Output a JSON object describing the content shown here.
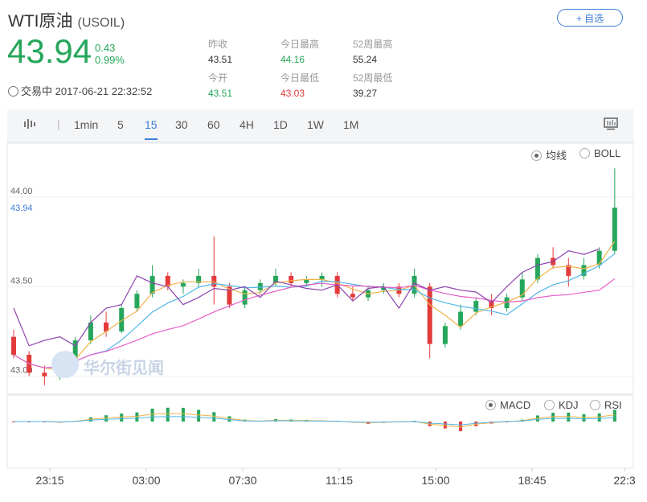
{
  "header": {
    "name": "WTI原油",
    "symbol": "(USOIL)",
    "add_label": "+ 自选",
    "price": "43.94",
    "change": "0.43",
    "change_pct": "0.99%",
    "status": "交易中 2017-06-21 22:32:52"
  },
  "stats": [
    {
      "label": "昨收",
      "value": "43.51"
    },
    {
      "label": "今日最高",
      "value": "44.16"
    },
    {
      "label": "52周最高",
      "value": "55.24"
    },
    {
      "label": "今开",
      "value": "43.51"
    },
    {
      "label": "今日最低",
      "value": "43.03"
    },
    {
      "label": "52周最低",
      "value": "39.27"
    }
  ],
  "toolbar": {
    "periods": [
      "1min",
      "5",
      "15",
      "30",
      "60",
      "4H",
      "1D",
      "1W",
      "1M"
    ],
    "active": "15"
  },
  "indicators_main": [
    "均线",
    "BOLL"
  ],
  "indicators_sub": [
    "MACD",
    "KDJ",
    "RSI"
  ],
  "watermark": "华尔街见闻",
  "colors": {
    "up": "#26a65b",
    "down": "#e33b3b",
    "accent": "#3b7dd8",
    "ma5": "#f0b24a",
    "ma10": "#4fb7e8",
    "ma20": "#e85fc6",
    "ma60": "#8e44ad"
  },
  "chart_data": {
    "type": "candlestick",
    "ylim": [
      42.9,
      44.3
    ],
    "y_ticks": [
      "44.00",
      "43.50",
      "43.00"
    ],
    "last_price_label": "43.94",
    "x_ticks": [
      "23:15",
      "03:00",
      "07:30",
      "11:15",
      "15:00",
      "18:45",
      "22:3"
    ],
    "series": [
      {
        "values": [
          43.38,
          43.17,
          43.2,
          43.22,
          43.17,
          43.3,
          43.38,
          43.4,
          43.56,
          43.52,
          43.5,
          43.4,
          43.44,
          43.49,
          43.48,
          43.5,
          43.44,
          43.53,
          43.51,
          43.49,
          43.48,
          43.51,
          43.42,
          43.49,
          43.5,
          43.38,
          43.52,
          43.48,
          43.5,
          43.48,
          43.47,
          43.41,
          43.5,
          43.58,
          43.62,
          43.64,
          43.7,
          43.68,
          43.71
        ]
      }
    ],
    "candles": [
      {
        "o": 43.22,
        "h": 43.26,
        "l": 43.1,
        "c": 43.12
      },
      {
        "o": 43.12,
        "h": 43.14,
        "l": 43.0,
        "c": 43.02
      },
      {
        "o": 43.02,
        "h": 43.06,
        "l": 42.95,
        "c": 43.0
      },
      {
        "o": 43.0,
        "h": 43.1,
        "l": 42.98,
        "c": 43.08
      },
      {
        "o": 43.08,
        "h": 43.22,
        "l": 43.06,
        "c": 43.2
      },
      {
        "o": 43.2,
        "h": 43.34,
        "l": 43.18,
        "c": 43.3
      },
      {
        "o": 43.3,
        "h": 43.36,
        "l": 43.22,
        "c": 43.25
      },
      {
        "o": 43.25,
        "h": 43.4,
        "l": 43.24,
        "c": 43.38
      },
      {
        "o": 43.38,
        "h": 43.48,
        "l": 43.36,
        "c": 43.46
      },
      {
        "o": 43.46,
        "h": 43.62,
        "l": 43.44,
        "c": 43.56
      },
      {
        "o": 43.56,
        "h": 43.58,
        "l": 43.48,
        "c": 43.5
      },
      {
        "o": 43.5,
        "h": 43.54,
        "l": 43.46,
        "c": 43.52
      },
      {
        "o": 43.52,
        "h": 43.6,
        "l": 43.5,
        "c": 43.56
      },
      {
        "o": 43.56,
        "h": 43.78,
        "l": 43.4,
        "c": 43.5
      },
      {
        "o": 43.5,
        "h": 43.52,
        "l": 43.38,
        "c": 43.4
      },
      {
        "o": 43.4,
        "h": 43.5,
        "l": 43.38,
        "c": 43.48
      },
      {
        "o": 43.48,
        "h": 43.54,
        "l": 43.46,
        "c": 43.52
      },
      {
        "o": 43.52,
        "h": 43.6,
        "l": 43.5,
        "c": 43.56
      },
      {
        "o": 43.56,
        "h": 43.58,
        "l": 43.5,
        "c": 43.52
      },
      {
        "o": 43.52,
        "h": 43.56,
        "l": 43.5,
        "c": 43.54
      },
      {
        "o": 43.54,
        "h": 43.58,
        "l": 43.5,
        "c": 43.56
      },
      {
        "o": 43.56,
        "h": 43.58,
        "l": 43.44,
        "c": 43.46
      },
      {
        "o": 43.46,
        "h": 43.5,
        "l": 43.42,
        "c": 43.44
      },
      {
        "o": 43.44,
        "h": 43.5,
        "l": 43.42,
        "c": 43.48
      },
      {
        "o": 43.48,
        "h": 43.52,
        "l": 43.46,
        "c": 43.5
      },
      {
        "o": 43.5,
        "h": 43.52,
        "l": 43.44,
        "c": 43.46
      },
      {
        "o": 43.46,
        "h": 43.6,
        "l": 43.44,
        "c": 43.56
      },
      {
        "o": 43.5,
        "h": 43.52,
        "l": 43.1,
        "c": 43.18
      },
      {
        "o": 43.18,
        "h": 43.3,
        "l": 43.16,
        "c": 43.28
      },
      {
        "o": 43.28,
        "h": 43.4,
        "l": 43.26,
        "c": 43.36
      },
      {
        "o": 43.36,
        "h": 43.44,
        "l": 43.34,
        "c": 43.42
      },
      {
        "o": 43.42,
        "h": 43.46,
        "l": 43.34,
        "c": 43.38
      },
      {
        "o": 43.38,
        "h": 43.46,
        "l": 43.36,
        "c": 43.44
      },
      {
        "o": 43.44,
        "h": 43.58,
        "l": 43.42,
        "c": 43.54
      },
      {
        "o": 43.54,
        "h": 43.68,
        "l": 43.52,
        "c": 43.66
      },
      {
        "o": 43.66,
        "h": 43.72,
        "l": 43.6,
        "c": 43.62
      },
      {
        "o": 43.62,
        "h": 43.66,
        "l": 43.5,
        "c": 43.56
      },
      {
        "o": 43.56,
        "h": 43.66,
        "l": 43.54,
        "c": 43.62
      },
      {
        "o": 43.62,
        "h": 43.72,
        "l": 43.6,
        "c": 43.7
      },
      {
        "o": 43.7,
        "h": 44.16,
        "l": 43.68,
        "c": 43.94
      }
    ]
  }
}
